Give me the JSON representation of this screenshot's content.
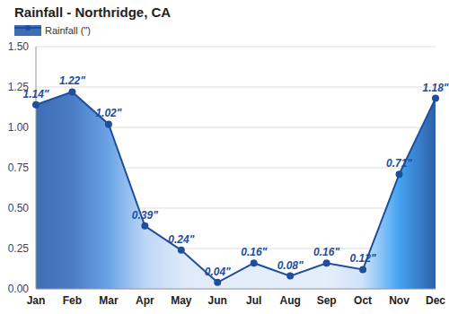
{
  "chart_data": {
    "type": "area",
    "title": "Rainfall - Northridge, CA",
    "legend": "top-left",
    "grid": true,
    "data_labels": true,
    "categories": [
      "Jan",
      "Feb",
      "Mar",
      "Apr",
      "May",
      "Jun",
      "Jul",
      "Aug",
      "Sep",
      "Oct",
      "Nov",
      "Dec"
    ],
    "series": [
      {
        "name": "Rainfall (\")",
        "color": "#1f4e9c",
        "values": [
          1.14,
          1.22,
          1.02,
          0.39,
          0.24,
          0.04,
          0.16,
          0.08,
          0.16,
          0.12,
          0.71,
          1.18
        ],
        "value_labels": [
          "1.14\"",
          "1.22\"",
          "1.02\"",
          "0.39\"",
          "0.24\"",
          "0.04\"",
          "0.16\"",
          "0.08\"",
          "0.16\"",
          "0.12\"",
          "0.71\"",
          "1.18\""
        ],
        "colors": [
          "#3d6db5",
          "#4a7cc4",
          "#6aa3e6",
          "#bcd7f5",
          "#dbe9f9",
          "#e4eefa",
          "#e4eefa",
          "#e4eefa",
          "#e4eefa",
          "#cfe3f8",
          "#44a3f2",
          "#2f5fa9"
        ]
      }
    ],
    "ylim": [
      0,
      1.5
    ],
    "yticks": [
      {
        "value": 0,
        "label": "0.00"
      },
      {
        "value": 0.25,
        "label": "0.25"
      },
      {
        "value": 0.5,
        "label": "0.50"
      },
      {
        "value": 0.75,
        "label": "0.75"
      },
      {
        "value": 1,
        "label": "1.00"
      },
      {
        "value": 1.25,
        "label": "1.25"
      },
      {
        "value": 1.5,
        "label": "1.50"
      }
    ]
  }
}
